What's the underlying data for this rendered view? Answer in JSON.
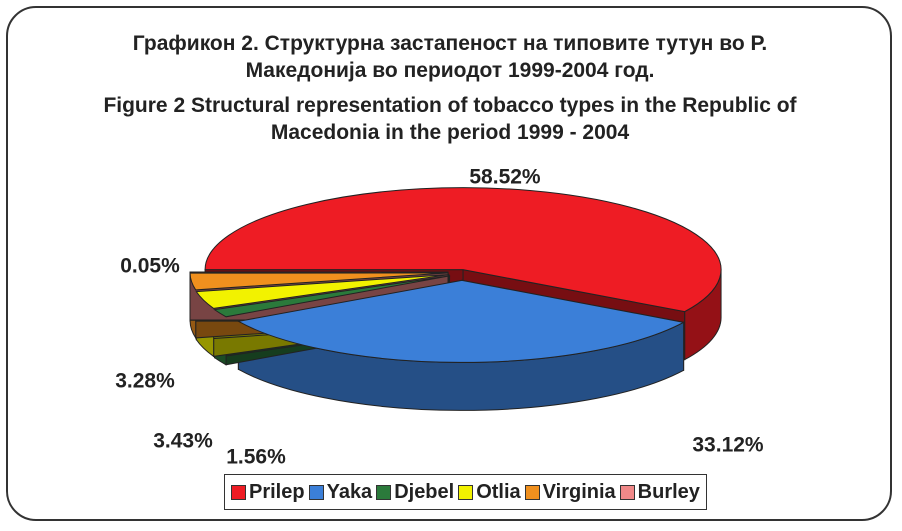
{
  "chart_data": {
    "type": "pie",
    "title": "Графикон 2. Структурна застапеност на типовите тутун во Р. Македонија во периодот 1999-2004 год.",
    "subtitle": "Figure 2  Structural representation of tobacco types in the Republic of Macedonia in the period 1999 - 2004",
    "categories": [
      "Prilep",
      "Yaka",
      "Djebel",
      "Otlia",
      "Virginia",
      "Burley"
    ],
    "values": [
      58.52,
      33.12,
      1.56,
      3.43,
      3.28,
      0.05
    ],
    "value_labels": [
      "58.52%",
      "33.12%",
      "1.56%",
      "3.43%",
      "3.28%",
      "0.05%"
    ],
    "colors": [
      "#ee1c24",
      "#3b7fd8",
      "#2b7a3b",
      "#f2f200",
      "#f0901e",
      "#f08888"
    ],
    "legend": "bottom"
  }
}
